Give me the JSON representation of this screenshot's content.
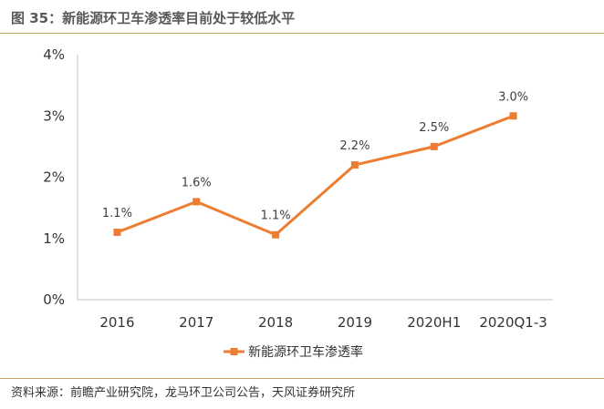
{
  "header": {
    "title": "图 35：新能源环卫车渗透率目前处于较低水平"
  },
  "chart_data": {
    "type": "line",
    "categories": [
      "2016",
      "2017",
      "2018",
      "2019",
      "2020H1",
      "2020Q1-3"
    ],
    "series": [
      {
        "name": "新能源环卫车渗透率",
        "values": [
          1.1,
          1.6,
          1.06,
          2.2,
          2.5,
          3.0
        ],
        "labels": [
          "1.1%",
          "1.6%",
          "1.1%",
          "2.2%",
          "2.5%",
          "3.0%"
        ],
        "color": "#ED7D31"
      }
    ],
    "ylim": [
      0,
      4
    ],
    "yticks": [
      "0%",
      "1%",
      "2%",
      "3%",
      "4%"
    ],
    "grid": false,
    "legend": "bottom"
  },
  "footer": {
    "source": "资料来源：前瞻产业研究院，龙马环卫公司公告，天风证券研究所"
  }
}
